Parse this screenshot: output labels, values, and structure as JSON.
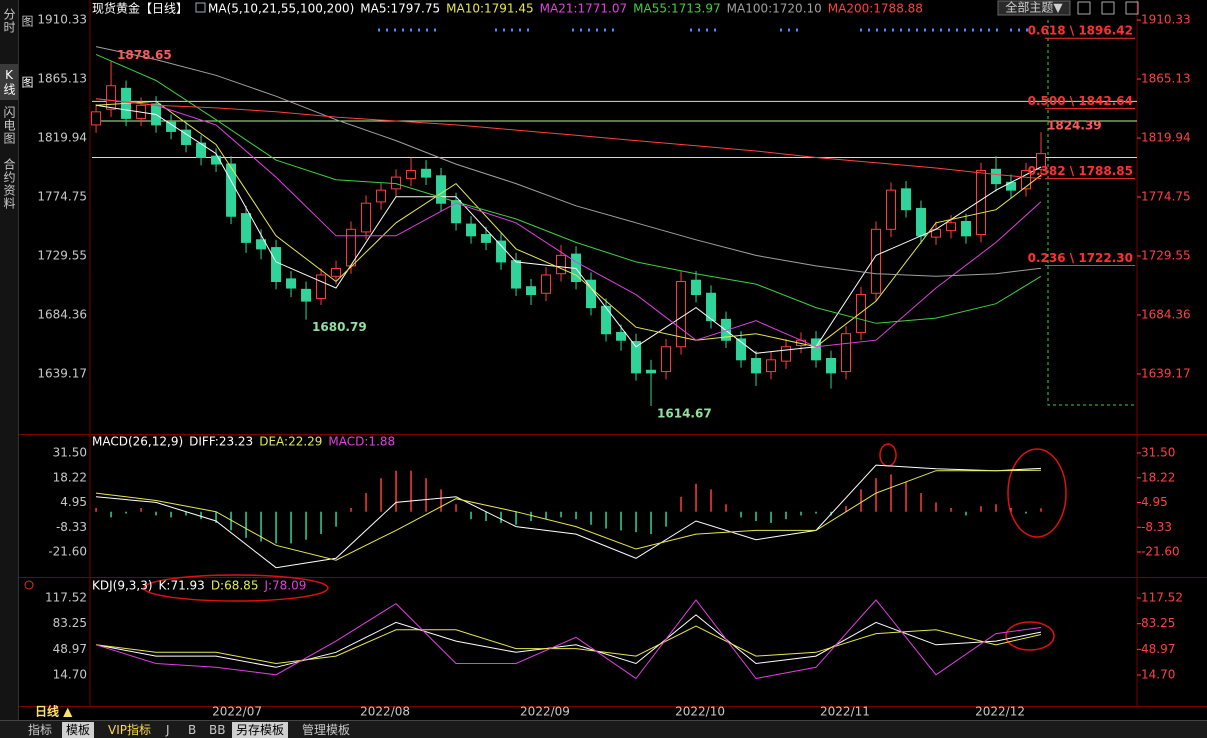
{
  "sidebar": [
    "分时图",
    "K线图",
    "闪电图",
    "合约资料"
  ],
  "theme_menu": "全部主题▼",
  "period": "日线 ▲",
  "tabs": [
    "指标",
    "模板",
    "VIP指标",
    "J",
    "B",
    "BB",
    "另存模板",
    "管理模板"
  ],
  "chart_data": [
    {
      "type": "candlestick",
      "title": "现货黄金【日线】",
      "subtitle": "MA(5,10,21,55,100,200)",
      "open": [
        1830,
        1842,
        1858,
        1835,
        1846,
        1832,
        1826,
        1816,
        1806,
        1800,
        1762,
        1742,
        1736,
        1712,
        1704,
        1697,
        1714,
        1722,
        1748,
        1771,
        1781,
        1789,
        1796,
        1791,
        1772,
        1754,
        1746,
        1741,
        1726,
        1706,
        1701,
        1716,
        1731,
        1711,
        1691,
        1671,
        1664,
        1642,
        1641,
        1660,
        1711,
        1701,
        1681,
        1666,
        1651,
        1641,
        1649,
        1661,
        1666,
        1651,
        1641,
        1671,
        1701,
        1750,
        1781,
        1766,
        1744,
        1749,
        1756,
        1746,
        1796,
        1786,
        1781,
        1796
      ],
      "high": [
        1846,
        1878.65,
        1864,
        1851,
        1852,
        1838,
        1832,
        1822,
        1812,
        1806,
        1768,
        1750,
        1742,
        1718,
        1710,
        1720,
        1726,
        1756,
        1776,
        1786,
        1796,
        1805,
        1803,
        1797,
        1778,
        1760,
        1752,
        1747,
        1732,
        1712,
        1721,
        1738,
        1737,
        1717,
        1697,
        1677,
        1670,
        1650,
        1666,
        1718,
        1718,
        1707,
        1687,
        1672,
        1657,
        1656,
        1666,
        1671,
        1672,
        1657,
        1676,
        1706,
        1756,
        1786,
        1787,
        1772,
        1756,
        1761,
        1762,
        1801,
        1806,
        1792,
        1801,
        1824.39
      ],
      "low": [
        1824,
        1836,
        1829,
        1829,
        1824,
        1819,
        1809,
        1799,
        1794,
        1754,
        1732,
        1727,
        1704,
        1698,
        1680.79,
        1692,
        1708,
        1716,
        1742,
        1765,
        1775,
        1783,
        1784,
        1764,
        1749,
        1739,
        1734,
        1719,
        1699,
        1692,
        1695,
        1710,
        1704,
        1684,
        1664,
        1657,
        1634,
        1614.67,
        1635,
        1654,
        1694,
        1674,
        1659,
        1644,
        1630,
        1635,
        1643,
        1655,
        1644,
        1628,
        1635,
        1665,
        1695,
        1744,
        1759,
        1739,
        1738,
        1743,
        1739,
        1740,
        1779,
        1774,
        1775,
        1790
      ],
      "close": [
        1840,
        1860,
        1835,
        1845,
        1830,
        1825,
        1815,
        1805,
        1800,
        1760,
        1740,
        1735,
        1710,
        1705,
        1695,
        1715,
        1720,
        1750,
        1770,
        1780,
        1790,
        1795,
        1790,
        1770,
        1755,
        1745,
        1740,
        1725,
        1705,
        1700,
        1715,
        1730,
        1710,
        1690,
        1670,
        1665,
        1640,
        1640,
        1660,
        1710,
        1700,
        1680,
        1665,
        1650,
        1640,
        1650,
        1660,
        1665,
        1650,
        1640,
        1670,
        1700,
        1750,
        1780,
        1765,
        1745,
        1750,
        1755,
        1745,
        1795,
        1785,
        1780,
        1795,
        1808
      ],
      "up_color": "#ff3c3c",
      "down_color": "#2fd49a",
      "labeled_highs": [
        1,
        63
      ],
      "labeled_lows": [
        14,
        37
      ],
      "high_label_color": "#ff5a5a",
      "low_label_color": "#8fe0a0",
      "line_x": [
        0,
        4,
        8,
        12,
        16,
        20,
        24,
        28,
        32,
        36,
        40,
        44,
        48,
        52,
        56,
        60,
        63
      ],
      "series": [
        {
          "name": "MA5:1797.75",
          "color": "#ffffff",
          "values": [
            1845,
            1838,
            1808,
            1725,
            1705,
            1775,
            1775,
            1725,
            1720,
            1660,
            1690,
            1655,
            1660,
            1730,
            1750,
            1780,
            1797.75
          ]
        },
        {
          "name": "MA10:1791.45",
          "color": "#e8e84a",
          "values": [
            1845,
            1848,
            1815,
            1745,
            1710,
            1755,
            1785,
            1735,
            1715,
            1675,
            1665,
            1670,
            1660,
            1695,
            1755,
            1765,
            1791.45
          ]
        },
        {
          "name": "MA21:1771.07",
          "color": "#e040e0",
          "values": [
            1850,
            1845,
            1830,
            1790,
            1745,
            1745,
            1770,
            1755,
            1725,
            1700,
            1665,
            1680,
            1660,
            1665,
            1705,
            1740,
            1771.07
          ]
        },
        {
          "name": "MA55:1713.97",
          "color": "#3fcf3f",
          "values": [
            1884,
            1864,
            1834,
            1803,
            1788,
            1785,
            1771,
            1758,
            1740,
            1725,
            1716,
            1708,
            1690,
            1678,
            1682,
            1693,
            1713.97
          ]
        },
        {
          "name": "MA100:1720.10",
          "color": "#a0a0a0",
          "values": [
            1890,
            1880,
            1868,
            1852,
            1834,
            1818,
            1800,
            1785,
            1768,
            1755,
            1742,
            1730,
            1722,
            1716,
            1714,
            1716,
            1720.1
          ]
        },
        {
          "name": "MA200:1788.88",
          "color": "#ff4040",
          "values": [
            1850,
            1845,
            1843,
            1840,
            1836,
            1833,
            1830,
            1826,
            1822,
            1818,
            1814,
            1810,
            1805,
            1801,
            1797,
            1792,
            1788.88
          ]
        }
      ],
      "horizontal_lines": {
        "color": "#b8f59a",
        "values": [
          1848,
          1833,
          1805
        ]
      },
      "fib_color": "#ff3030",
      "fibonacci": [
        {
          "value": 1896.42,
          "label": "0.618 \\ 1896.42"
        },
        {
          "value": 1842.64,
          "label": "0.500 \\ 1842.64"
        },
        {
          "value": 1788.85,
          "label": "0.382 \\ 1788.85"
        },
        {
          "value": 1722.3,
          "label": "0.236 \\ 1722.30"
        }
      ],
      "xlim": [
        -0.27,
        69.4
      ],
      "xticks": [
        {
          "value": 9.4,
          "label": "2022/07"
        },
        {
          "value": 19.27,
          "label": "2022/08"
        },
        {
          "value": 29.93,
          "label": "2022/09"
        },
        {
          "value": 40.27,
          "label": "2022/10"
        },
        {
          "value": 49.93,
          "label": "2022/11"
        },
        {
          "value": 60.27,
          "label": "2022/12"
        }
      ],
      "ylim": [
        1594.7,
        1916.5
      ],
      "yticks": [
        1910.33,
        1865.13,
        1819.94,
        1774.75,
        1729.55,
        1684.36,
        1639.17
      ]
    },
    {
      "type": "macd",
      "title": "MACD(26,12,9)",
      "line_x": [
        0,
        4,
        8,
        12,
        16,
        20,
        24,
        28,
        32,
        36,
        40,
        44,
        48,
        52,
        56,
        60,
        63
      ],
      "series": [
        {
          "name": "DIFF:23.23",
          "color": "#ffffff",
          "values": [
            8,
            5,
            -5,
            -30,
            -25,
            5,
            8,
            -8,
            -12,
            -25,
            -5,
            -15,
            -10,
            25,
            23,
            22,
            23.23
          ]
        },
        {
          "name": "DEA:22.29",
          "color": "#e8e84a",
          "values": [
            10,
            6,
            0,
            -18,
            -26,
            -10,
            7,
            0,
            -8,
            -20,
            -12,
            -10,
            -10,
            10,
            22,
            22,
            22.29
          ]
        }
      ],
      "histogram": {
        "name": "MACD:1.88",
        "color": "#e040e0",
        "up_color": "#ff3c3c",
        "down_color": "#2fd49a",
        "values": [
          2,
          -3,
          -1,
          2,
          -2,
          -3,
          -2,
          -4,
          -6,
          -10,
          -14,
          -16,
          -17,
          -17,
          -15,
          -12,
          -8,
          2,
          10,
          18,
          22,
          22,
          18,
          12,
          4,
          -4,
          -5,
          -6,
          -7,
          -5,
          -4,
          -3,
          -4,
          -7,
          -9,
          -10,
          -11,
          -12,
          -8,
          8,
          15,
          12,
          4,
          -3,
          -5,
          -6,
          -4,
          -2,
          -1,
          -2,
          3,
          12,
          18,
          20,
          16,
          10,
          5,
          2,
          -2,
          3,
          4,
          2,
          -1,
          1.88
        ]
      },
      "ylim": [
        -33.94,
        40.08
      ],
      "yticks": [
        {
          "value": 31.5,
          "label": "31.50"
        },
        18.22,
        4.95,
        -8.33,
        {
          "value": -21.6,
          "label": "-21.60"
        }
      ]
    },
    {
      "type": "kdj",
      "title": "KDJ(9,3,3)",
      "line_x": [
        0,
        4,
        8,
        12,
        16,
        20,
        24,
        28,
        32,
        36,
        40,
        44,
        48,
        52,
        56,
        60,
        63
      ],
      "series": [
        {
          "name": "K:71.93",
          "color": "#ffffff",
          "values": [
            55,
            40,
            40,
            25,
            45,
            85,
            60,
            45,
            55,
            30,
            95,
            30,
            40,
            85,
            55,
            60,
            71.93
          ]
        },
        {
          "name": "D:68.85",
          "color": "#e8e84a",
          "values": [
            55,
            45,
            45,
            30,
            40,
            75,
            75,
            50,
            50,
            40,
            80,
            40,
            45,
            70,
            75,
            55,
            68.85
          ]
        },
        {
          "name": "J:78.09",
          "color": "#e040e0",
          "values": [
            55,
            30,
            25,
            15,
            60,
            110,
            30,
            30,
            65,
            10,
            115,
            10,
            25,
            115,
            15,
            70,
            78.09
          ]
        }
      ],
      "ylim": [
        -26.69,
        141.56
      ],
      "yticks": [
        117.52,
        83.25,
        48.97,
        {
          "value": 14.7,
          "label": "14.70"
        }
      ]
    }
  ]
}
